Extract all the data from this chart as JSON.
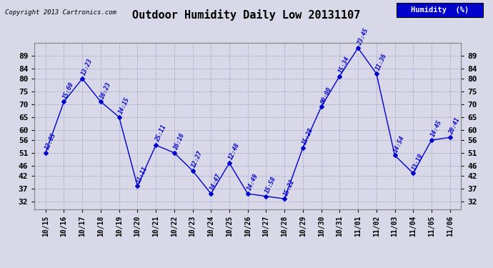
{
  "title": "Outdoor Humidity Daily Low 20131107",
  "copyright": "Copyright 2013 Cartronics.com",
  "legend_label": "Humidity  (%)",
  "line_color": "#0000CC",
  "bg_color": "#D8D8E8",
  "grid_color": "#AAAACC",
  "points": [
    {
      "date": "10/15",
      "value": 51,
      "label": "12:05"
    },
    {
      "date": "10/16",
      "value": 71,
      "label": "15:60"
    },
    {
      "date": "10/17",
      "value": 80,
      "label": "13:23"
    },
    {
      "date": "10/18",
      "value": 71,
      "label": "16:23"
    },
    {
      "date": "10/19",
      "value": 65,
      "label": "14:15"
    },
    {
      "date": "10/20",
      "value": 38,
      "label": "11:11"
    },
    {
      "date": "10/21",
      "value": 54,
      "label": "25:11"
    },
    {
      "date": "10/22",
      "value": 51,
      "label": "16:16"
    },
    {
      "date": "10/23",
      "value": 44,
      "label": "12:27"
    },
    {
      "date": "10/24",
      "value": 35,
      "label": "14:47"
    },
    {
      "date": "10/25",
      "value": 47,
      "label": "12:48"
    },
    {
      "date": "10/26",
      "value": 35,
      "label": "14:49"
    },
    {
      "date": "10/27",
      "value": 34,
      "label": "15:58"
    },
    {
      "date": "10/28",
      "value": 33,
      "label": "15:22"
    },
    {
      "date": "10/29",
      "value": 53,
      "label": "15:28"
    },
    {
      "date": "10/30",
      "value": 69,
      "label": "00:00"
    },
    {
      "date": "10/31",
      "value": 81,
      "label": "15:34"
    },
    {
      "date": "11/01",
      "value": 92,
      "label": "23:45"
    },
    {
      "date": "11/02",
      "value": 82,
      "label": "11:36"
    },
    {
      "date": "11/03",
      "value": 50,
      "label": "14:54"
    },
    {
      "date": "11/04",
      "value": 43,
      "label": "13:19"
    },
    {
      "date": "11/05",
      "value": 56,
      "label": "14:45"
    },
    {
      "date": "11/06",
      "value": 57,
      "label": "20:41"
    }
  ],
  "yticks": [
    32,
    37,
    42,
    46,
    51,
    56,
    60,
    65,
    70,
    75,
    80,
    84,
    89
  ],
  "ylim": [
    29,
    94
  ]
}
